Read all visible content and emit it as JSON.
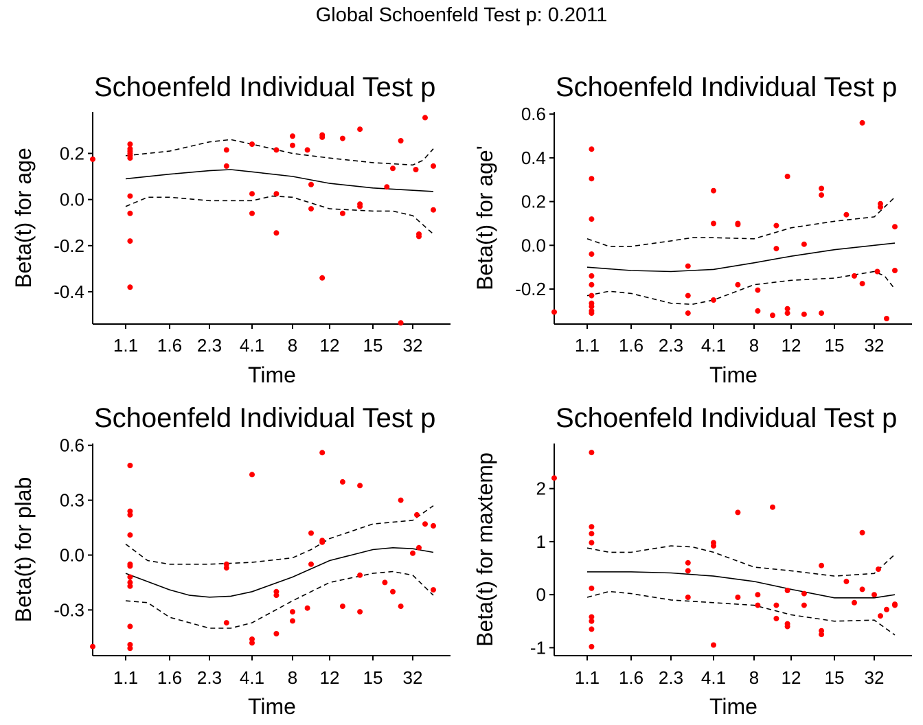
{
  "global_title": "Global Schoenfeld Test p: 0.2011",
  "colors": {
    "points": "#ff0000",
    "lines": "#000000"
  },
  "chart_data": [
    {
      "type": "scatter",
      "title": "Schoenfeld Individual Test p",
      "xlabel": "Time",
      "ylabel": "Beta(t) for age",
      "x_ticks": [
        "1.1",
        "1.6",
        "2.3",
        "4.1",
        "8",
        "12",
        "15",
        "32"
      ],
      "y_ticks": [
        0.2,
        0.0,
        -0.2,
        -0.4
      ],
      "y_tick_labels": [
        "0.2",
        "0.0",
        "-0.2",
        "-0.4"
      ],
      "ylim": [
        -0.54,
        0.38
      ],
      "points": [
        [
          -0.3,
          0.175
        ],
        [
          0.1,
          0.2
        ],
        [
          0.1,
          0.21
        ],
        [
          0.1,
          0.22
        ],
        [
          0.1,
          0.24
        ],
        [
          0.1,
          0.18
        ],
        [
          0.1,
          0.19
        ],
        [
          0.1,
          0.015
        ],
        [
          0.1,
          -0.06
        ],
        [
          0.1,
          -0.18
        ],
        [
          0.1,
          -0.38
        ],
        [
          2.4,
          0.215
        ],
        [
          2.4,
          0.145
        ],
        [
          3.0,
          0.24
        ],
        [
          3.0,
          0.025
        ],
        [
          3.0,
          -0.06
        ],
        [
          3.6,
          0.215
        ],
        [
          3.6,
          0.025
        ],
        [
          3.6,
          -0.145
        ],
        [
          4.0,
          0.275
        ],
        [
          4.0,
          0.235
        ],
        [
          4.4,
          0.215
        ],
        [
          4.5,
          0.065
        ],
        [
          4.5,
          -0.04
        ],
        [
          4.8,
          0.27
        ],
        [
          4.8,
          0.28
        ],
        [
          4.8,
          -0.34
        ],
        [
          5.3,
          0.265
        ],
        [
          5.3,
          -0.06
        ],
        [
          5.7,
          0.305
        ],
        [
          5.7,
          -0.02
        ],
        [
          5.7,
          -0.03
        ],
        [
          6.35,
          0.055
        ],
        [
          6.5,
          0.135
        ],
        [
          6.7,
          0.255
        ],
        [
          6.7,
          -0.535
        ],
        [
          7.15,
          0.13
        ],
        [
          7.3,
          -0.15
        ],
        [
          7.3,
          -0.16
        ],
        [
          7.6,
          0.355
        ],
        [
          8.0,
          0.145
        ],
        [
          8.0,
          -0.045
        ]
      ],
      "fit": [
        [
          0,
          0.09
        ],
        [
          1,
          0.11
        ],
        [
          2,
          0.125
        ],
        [
          2.5,
          0.13
        ],
        [
          3,
          0.12
        ],
        [
          4,
          0.1
        ],
        [
          5,
          0.07
        ],
        [
          6,
          0.05
        ],
        [
          7,
          0.04
        ],
        [
          8,
          0.035
        ]
      ],
      "upper": [
        [
          0,
          0.19
        ],
        [
          1,
          0.21
        ],
        [
          2,
          0.25
        ],
        [
          2.5,
          0.26
        ],
        [
          3,
          0.24
        ],
        [
          4,
          0.2
        ],
        [
          5,
          0.18
        ],
        [
          6,
          0.16
        ],
        [
          7,
          0.15
        ],
        [
          7.5,
          0.17
        ],
        [
          8,
          0.22
        ]
      ],
      "lower": [
        [
          0,
          -0.03
        ],
        [
          0.5,
          0.01
        ],
        [
          1,
          0.01
        ],
        [
          2,
          -0.005
        ],
        [
          3,
          -0.005
        ],
        [
          3.5,
          0.015
        ],
        [
          4,
          0.01
        ],
        [
          5,
          -0.04
        ],
        [
          6,
          -0.05
        ],
        [
          6.5,
          -0.05
        ],
        [
          7,
          -0.07
        ],
        [
          8,
          -0.15
        ]
      ]
    },
    {
      "type": "scatter",
      "title": "Schoenfeld Individual Test p",
      "xlabel": "Time",
      "ylabel": "Beta(t) for age'",
      "x_ticks": [
        "1.1",
        "1.6",
        "2.3",
        "4.1",
        "8",
        "12",
        "15",
        "32"
      ],
      "y_ticks": [
        0.6,
        0.4,
        0.2,
        0.0,
        -0.2
      ],
      "y_tick_labels": [
        "0.6",
        "0.4",
        "0.2",
        "0.0",
        "-0.2"
      ],
      "ylim": [
        -0.36,
        0.61
      ],
      "points": [
        [
          -0.3,
          -0.305
        ],
        [
          0.1,
          0.44
        ],
        [
          0.1,
          0.305
        ],
        [
          0.1,
          0.12
        ],
        [
          0.1,
          -0.04
        ],
        [
          0.1,
          -0.14
        ],
        [
          0.1,
          -0.18
        ],
        [
          0.1,
          -0.23
        ],
        [
          0.1,
          -0.265
        ],
        [
          0.1,
          -0.28
        ],
        [
          0.1,
          -0.3
        ],
        [
          0.1,
          -0.31
        ],
        [
          2.4,
          -0.095
        ],
        [
          2.4,
          -0.23
        ],
        [
          2.4,
          -0.31
        ],
        [
          3.0,
          0.25
        ],
        [
          3.0,
          0.1
        ],
        [
          3.0,
          -0.25
        ],
        [
          3.6,
          0.095
        ],
        [
          3.6,
          0.1
        ],
        [
          3.6,
          -0.18
        ],
        [
          4.1,
          -0.205
        ],
        [
          4.1,
          -0.3
        ],
        [
          4.5,
          -0.32
        ],
        [
          4.6,
          0.09
        ],
        [
          4.6,
          -0.015
        ],
        [
          4.9,
          0.315
        ],
        [
          4.9,
          -0.29
        ],
        [
          4.9,
          -0.31
        ],
        [
          5.3,
          0.005
        ],
        [
          5.3,
          -0.315
        ],
        [
          5.7,
          0.26
        ],
        [
          5.7,
          0.23
        ],
        [
          5.7,
          -0.31
        ],
        [
          6.3,
          0.14
        ],
        [
          6.5,
          -0.14
        ],
        [
          6.7,
          0.56
        ],
        [
          6.7,
          -0.175
        ],
        [
          7.15,
          -0.12
        ],
        [
          7.3,
          0.19
        ],
        [
          7.3,
          0.175
        ],
        [
          7.6,
          -0.335
        ],
        [
          8.0,
          0.085
        ],
        [
          8.0,
          -0.115
        ]
      ],
      "fit": [
        [
          0,
          -0.1
        ],
        [
          1,
          -0.115
        ],
        [
          2,
          -0.12
        ],
        [
          3,
          -0.11
        ],
        [
          4,
          -0.08
        ],
        [
          5,
          -0.05
        ],
        [
          6,
          -0.02
        ],
        [
          7,
          0.0
        ],
        [
          8,
          0.01
        ]
      ],
      "upper": [
        [
          0,
          0.03
        ],
        [
          0.5,
          -0.005
        ],
        [
          1,
          -0.005
        ],
        [
          2,
          0.02
        ],
        [
          2.5,
          0.035
        ],
        [
          3,
          0.035
        ],
        [
          4,
          0.03
        ],
        [
          5,
          0.08
        ],
        [
          6,
          0.11
        ],
        [
          7,
          0.13
        ],
        [
          8,
          0.22
        ]
      ],
      "lower": [
        [
          0,
          -0.23
        ],
        [
          0.5,
          -0.21
        ],
        [
          1,
          -0.22
        ],
        [
          2,
          -0.265
        ],
        [
          2.5,
          -0.27
        ],
        [
          3,
          -0.25
        ],
        [
          4,
          -0.18
        ],
        [
          5,
          -0.16
        ],
        [
          6,
          -0.15
        ],
        [
          7,
          -0.12
        ],
        [
          7.5,
          -0.14
        ],
        [
          8,
          -0.2
        ]
      ]
    },
    {
      "type": "scatter",
      "title": "Schoenfeld Individual Test p",
      "xlabel": "Time",
      "ylabel": "Beta(t) for plab",
      "x_ticks": [
        "1.1",
        "1.6",
        "2.3",
        "4.1",
        "8",
        "12",
        "15",
        "32"
      ],
      "y_ticks": [
        0.6,
        0.3,
        0.0,
        -0.3
      ],
      "y_tick_labels": [
        "0.6",
        "0.3",
        "0.0",
        "-0.3"
      ],
      "ylim": [
        -0.55,
        0.61
      ],
      "points": [
        [
          -0.3,
          -0.5
        ],
        [
          0.1,
          0.49
        ],
        [
          0.1,
          0.24
        ],
        [
          0.1,
          0.22
        ],
        [
          0.1,
          0.11
        ],
        [
          0.1,
          -0.05
        ],
        [
          0.1,
          -0.06
        ],
        [
          0.1,
          -0.12
        ],
        [
          0.1,
          -0.15
        ],
        [
          0.1,
          -0.17
        ],
        [
          0.1,
          -0.39
        ],
        [
          0.1,
          -0.49
        ],
        [
          0.1,
          -0.51
        ],
        [
          2.4,
          -0.05
        ],
        [
          2.4,
          -0.07
        ],
        [
          2.4,
          -0.37
        ],
        [
          3.0,
          0.44
        ],
        [
          3.0,
          -0.46
        ],
        [
          3.0,
          -0.48
        ],
        [
          3.6,
          -0.2
        ],
        [
          3.6,
          -0.22
        ],
        [
          3.6,
          -0.43
        ],
        [
          4.0,
          -0.31
        ],
        [
          4.0,
          -0.36
        ],
        [
          4.4,
          -0.29
        ],
        [
          4.5,
          0.12
        ],
        [
          4.5,
          -0.05
        ],
        [
          4.8,
          0.56
        ],
        [
          4.8,
          0.08
        ],
        [
          4.8,
          0.07
        ],
        [
          5.3,
          0.4
        ],
        [
          5.3,
          -0.28
        ],
        [
          5.7,
          0.38
        ],
        [
          5.7,
          -0.11
        ],
        [
          5.7,
          -0.31
        ],
        [
          6.3,
          -0.15
        ],
        [
          6.5,
          -0.2
        ],
        [
          6.7,
          0.3
        ],
        [
          6.7,
          -0.28
        ],
        [
          7.0,
          0.01
        ],
        [
          7.2,
          0.22
        ],
        [
          7.3,
          0.04
        ],
        [
          7.6,
          0.17
        ],
        [
          8.0,
          0.16
        ],
        [
          8.0,
          -0.19
        ]
      ],
      "fit": [
        [
          0,
          -0.1
        ],
        [
          1,
          -0.19
        ],
        [
          1.5,
          -0.22
        ],
        [
          2,
          -0.23
        ],
        [
          2.5,
          -0.225
        ],
        [
          3,
          -0.2
        ],
        [
          4,
          -0.12
        ],
        [
          5,
          -0.03
        ],
        [
          6,
          0.03
        ],
        [
          6.5,
          0.04
        ],
        [
          7,
          0.035
        ],
        [
          8,
          0.015
        ]
      ],
      "upper": [
        [
          0,
          0.06
        ],
        [
          0.5,
          -0.03
        ],
        [
          1,
          -0.05
        ],
        [
          2,
          -0.05
        ],
        [
          3,
          -0.04
        ],
        [
          4,
          -0.015
        ],
        [
          4.5,
          0.03
        ],
        [
          5,
          0.09
        ],
        [
          6,
          0.17
        ],
        [
          7,
          0.19
        ],
        [
          8,
          0.27
        ]
      ],
      "lower": [
        [
          0,
          -0.25
        ],
        [
          0.5,
          -0.26
        ],
        [
          1,
          -0.34
        ],
        [
          2,
          -0.4
        ],
        [
          2.5,
          -0.4
        ],
        [
          3,
          -0.37
        ],
        [
          4,
          -0.25
        ],
        [
          5,
          -0.15
        ],
        [
          6,
          -0.1
        ],
        [
          6.5,
          -0.09
        ],
        [
          7,
          -0.11
        ],
        [
          8,
          -0.22
        ]
      ]
    },
    {
      "type": "scatter",
      "title": "Schoenfeld Individual Test p",
      "xlabel": "Time",
      "ylabel": "Beta(t) for maxtemp",
      "x_ticks": [
        "1.1",
        "1.6",
        "2.3",
        "4.1",
        "8",
        "12",
        "15",
        "32"
      ],
      "y_ticks": [
        2,
        1,
        0,
        -1
      ],
      "y_tick_labels": [
        "2",
        "1",
        "0",
        "-1"
      ],
      "ylim": [
        -1.15,
        2.85
      ],
      "points": [
        [
          -0.3,
          2.2
        ],
        [
          0.1,
          2.68
        ],
        [
          0.1,
          1.28
        ],
        [
          0.1,
          1.15
        ],
        [
          0.1,
          0.98
        ],
        [
          0.1,
          0.12
        ],
        [
          0.1,
          -0.42
        ],
        [
          0.1,
          -0.5
        ],
        [
          0.1,
          -0.65
        ],
        [
          0.1,
          -0.98
        ],
        [
          2.4,
          0.6
        ],
        [
          2.4,
          0.45
        ],
        [
          2.4,
          -0.05
        ],
        [
          3.0,
          0.98
        ],
        [
          3.0,
          0.92
        ],
        [
          3.0,
          -0.95
        ],
        [
          3.6,
          1.55
        ],
        [
          3.6,
          -0.05
        ],
        [
          4.1,
          0.0
        ],
        [
          4.1,
          -0.2
        ],
        [
          4.5,
          1.65
        ],
        [
          4.6,
          -0.2
        ],
        [
          4.6,
          -0.45
        ],
        [
          4.9,
          0.08
        ],
        [
          4.9,
          -0.55
        ],
        [
          4.9,
          -0.6
        ],
        [
          5.3,
          0.02
        ],
        [
          5.3,
          -0.2
        ],
        [
          5.7,
          0.55
        ],
        [
          5.7,
          -0.68
        ],
        [
          5.7,
          -0.75
        ],
        [
          6.3,
          0.25
        ],
        [
          6.5,
          -0.15
        ],
        [
          6.7,
          1.17
        ],
        [
          6.7,
          0.1
        ],
        [
          7.0,
          0.0
        ],
        [
          7.2,
          0.48
        ],
        [
          7.3,
          -0.4
        ],
        [
          7.6,
          -0.28
        ],
        [
          8.0,
          -0.18
        ],
        [
          8.0,
          -0.2
        ]
      ],
      "fit": [
        [
          0,
          0.43
        ],
        [
          1,
          0.43
        ],
        [
          2,
          0.41
        ],
        [
          3,
          0.35
        ],
        [
          4,
          0.25
        ],
        [
          5,
          0.1
        ],
        [
          6,
          -0.06
        ],
        [
          7,
          -0.06
        ],
        [
          8,
          0.0
        ]
      ],
      "upper": [
        [
          0,
          0.88
        ],
        [
          0.5,
          0.8
        ],
        [
          1,
          0.8
        ],
        [
          2,
          0.92
        ],
        [
          2.5,
          0.9
        ],
        [
          3,
          0.8
        ],
        [
          4,
          0.52
        ],
        [
          5,
          0.45
        ],
        [
          6,
          0.35
        ],
        [
          7,
          0.4
        ],
        [
          8,
          0.76
        ]
      ],
      "lower": [
        [
          0,
          -0.05
        ],
        [
          0.5,
          0.06
        ],
        [
          1,
          0.02
        ],
        [
          2,
          -0.1
        ],
        [
          3,
          -0.15
        ],
        [
          4,
          -0.2
        ],
        [
          5,
          -0.38
        ],
        [
          6,
          -0.5
        ],
        [
          7,
          -0.48
        ],
        [
          8,
          -0.76
        ]
      ]
    }
  ]
}
